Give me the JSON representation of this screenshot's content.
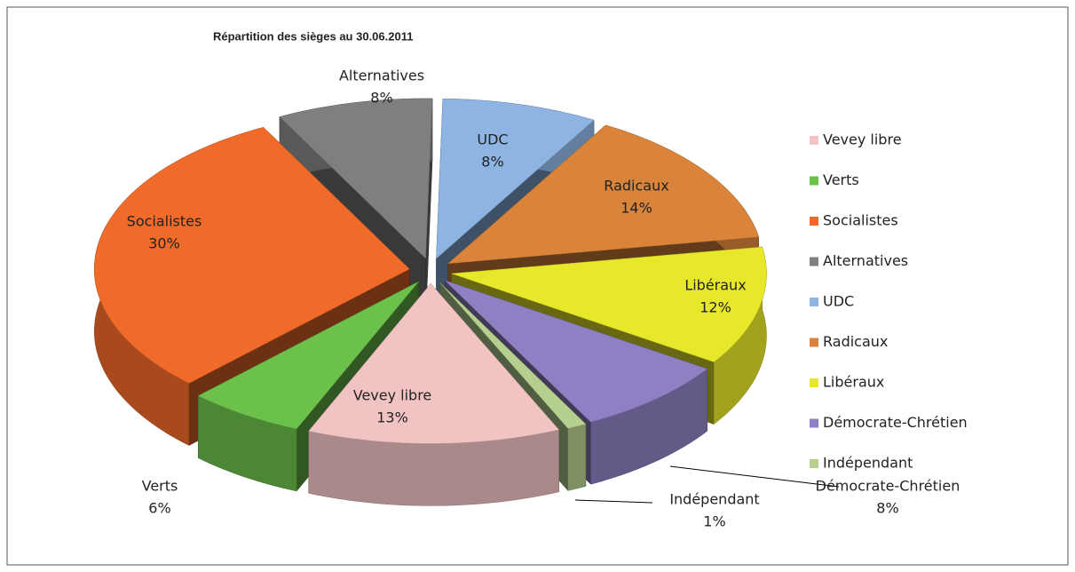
{
  "chart_data": {
    "type": "pie",
    "title": "Répartition des sièges au 30.06.2011",
    "categories": [
      "Vevey libre",
      "Verts",
      "Socialistes",
      "Alternatives",
      "UDC",
      "Radicaux",
      "Libéraux",
      "Démocrate-Chrétien",
      "Indépendant"
    ],
    "values": [
      13,
      6,
      30,
      8,
      8,
      14,
      12,
      8,
      1
    ],
    "value_labels": [
      "13%",
      "6%",
      "30%",
      "8%",
      "8%",
      "14%",
      "12%",
      "8%",
      "1%"
    ],
    "colors": [
      "#f2c3c3",
      "#6cc14b",
      "#f06a2a",
      "#7f7f7f",
      "#8db4e2",
      "#d9843a",
      "#e8e82a",
      "#8e80c2",
      "#b5cf8e"
    ],
    "legend": "right"
  }
}
